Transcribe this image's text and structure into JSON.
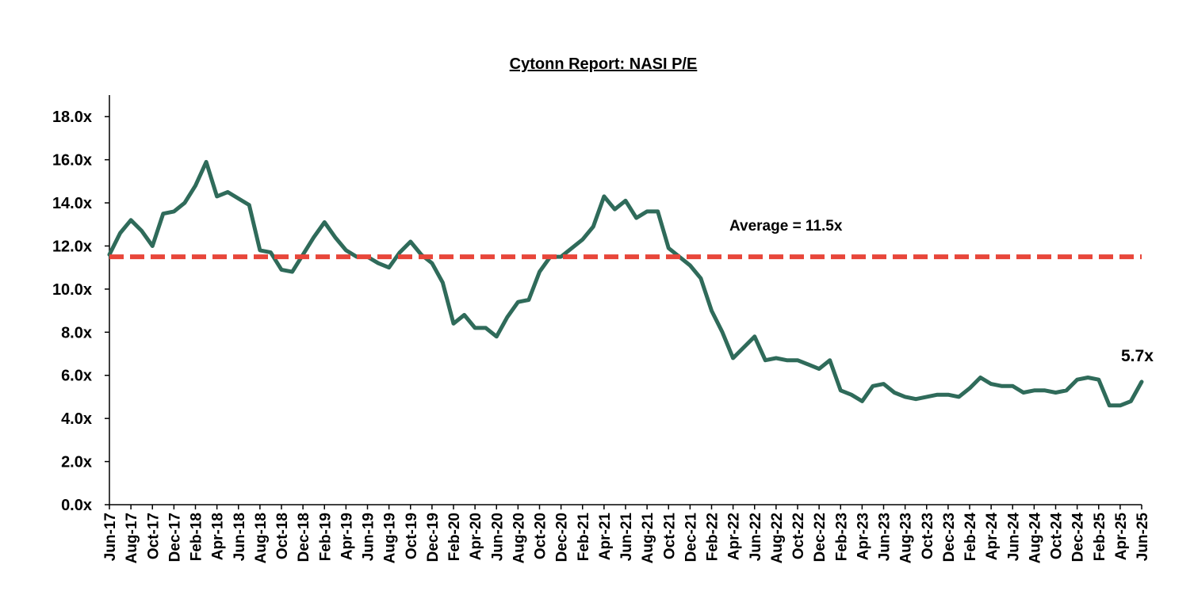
{
  "chart_data": {
    "type": "line",
    "title": "Cytonn Report: NASI P/E",
    "xlabel": "",
    "ylabel": "",
    "ylim": [
      0,
      19
    ],
    "y_ticks": [
      0,
      2,
      4,
      6,
      8,
      10,
      12,
      14,
      16,
      18
    ],
    "y_tick_labels": [
      "0.0x",
      "2.0x",
      "4.0x",
      "6.0x",
      "8.0x",
      "10.0x",
      "12.0x",
      "14.0x",
      "16.0x",
      "18.0x"
    ],
    "x_tick_labels": [
      "Jun-17",
      "Aug-17",
      "Oct-17",
      "Dec-17",
      "Feb-18",
      "Apr-18",
      "Jun-18",
      "Aug-18",
      "Oct-18",
      "Dec-18",
      "Feb-19",
      "Apr-19",
      "Jun-19",
      "Aug-19",
      "Oct-19",
      "Dec-19",
      "Feb-20",
      "Apr-20",
      "Jun-20",
      "Aug-20",
      "Oct-20",
      "Dec-20",
      "Feb-21",
      "Apr-21",
      "Jun-21",
      "Aug-21",
      "Oct-21",
      "Dec-21",
      "Feb-22",
      "Apr-22",
      "Jun-22",
      "Aug-22",
      "Oct-22",
      "Dec-22",
      "Feb-23",
      "Apr-23",
      "Jun-23",
      "Aug-23",
      "Oct-23",
      "Dec-23",
      "Feb-24",
      "Apr-24",
      "Jun-24",
      "Aug-24",
      "Oct-24",
      "Dec-24",
      "Feb-25",
      "Apr-25",
      "Jun-25"
    ],
    "grid": false,
    "series": [
      {
        "color": "#2f6b5a",
        "x": [
          "Jun-17",
          "Jul-17",
          "Aug-17",
          "Sep-17",
          "Oct-17",
          "Nov-17",
          "Dec-17",
          "Jan-18",
          "Feb-18",
          "Mar-18",
          "Apr-18",
          "May-18",
          "Jun-18",
          "Jul-18",
          "Aug-18",
          "Sep-18",
          "Oct-18",
          "Nov-18",
          "Dec-18",
          "Jan-19",
          "Feb-19",
          "Mar-19",
          "Apr-19",
          "May-19",
          "Jun-19",
          "Jul-19",
          "Aug-19",
          "Sep-19",
          "Oct-19",
          "Nov-19",
          "Dec-19",
          "Jan-20",
          "Feb-20",
          "Mar-20",
          "Apr-20",
          "May-20",
          "Jun-20",
          "Jul-20",
          "Aug-20",
          "Sep-20",
          "Oct-20",
          "Nov-20",
          "Dec-20",
          "Jan-21",
          "Feb-21",
          "Mar-21",
          "Apr-21",
          "May-21",
          "Jun-21",
          "Jul-21",
          "Aug-21",
          "Sep-21",
          "Oct-21",
          "Nov-21",
          "Dec-21",
          "Jan-22",
          "Feb-22",
          "Mar-22",
          "Apr-22",
          "May-22",
          "Jun-22",
          "Jul-22",
          "Aug-22",
          "Sep-22",
          "Oct-22",
          "Nov-22",
          "Dec-22",
          "Jan-23",
          "Feb-23",
          "Mar-23",
          "Apr-23",
          "May-23",
          "Jun-23",
          "Jul-23",
          "Aug-23",
          "Sep-23",
          "Oct-23",
          "Nov-23",
          "Dec-23",
          "Jan-24",
          "Feb-24",
          "Mar-24",
          "Apr-24",
          "May-24",
          "Jun-24",
          "Jul-24",
          "Aug-24",
          "Sep-24",
          "Oct-24",
          "Nov-24",
          "Dec-24",
          "Jan-25",
          "Feb-25",
          "Mar-25",
          "Apr-25",
          "May-25",
          "Jun-25"
        ],
        "values": [
          11.6,
          12.6,
          13.2,
          12.7,
          12.0,
          13.5,
          13.6,
          14.0,
          14.8,
          15.9,
          14.3,
          14.5,
          14.2,
          13.9,
          11.8,
          11.7,
          10.9,
          10.8,
          11.6,
          12.4,
          13.1,
          12.4,
          11.8,
          11.5,
          11.5,
          11.2,
          11.0,
          11.7,
          12.2,
          11.6,
          11.2,
          10.3,
          8.4,
          8.8,
          8.2,
          8.2,
          7.8,
          8.7,
          9.4,
          9.5,
          10.8,
          11.5,
          11.5,
          11.9,
          12.3,
          12.9,
          14.3,
          13.7,
          14.1,
          13.3,
          13.6,
          13.6,
          11.9,
          11.5,
          11.1,
          10.5,
          9.0,
          8.0,
          6.8,
          7.3,
          7.8,
          6.7,
          6.8,
          6.7,
          6.7,
          6.5,
          6.3,
          6.7,
          5.3,
          5.1,
          4.8,
          5.5,
          5.6,
          5.2,
          5.0,
          4.9,
          5.0,
          5.1,
          5.1,
          5.0,
          5.4,
          5.9,
          5.6,
          5.5,
          5.5,
          5.2,
          5.3,
          5.3,
          5.2,
          5.3,
          5.8,
          5.9,
          5.8,
          4.6,
          4.6,
          4.8,
          5.7
        ]
      },
      {
        "name": "Average",
        "type": "dashed",
        "color": "#e8463a",
        "x": [
          "Jun-17",
          "Jun-25"
        ],
        "values": [
          11.5,
          11.5
        ]
      }
    ],
    "annotations": [
      {
        "text": "Average = 11.5x"
      },
      {
        "text": "5.7x"
      }
    ]
  }
}
